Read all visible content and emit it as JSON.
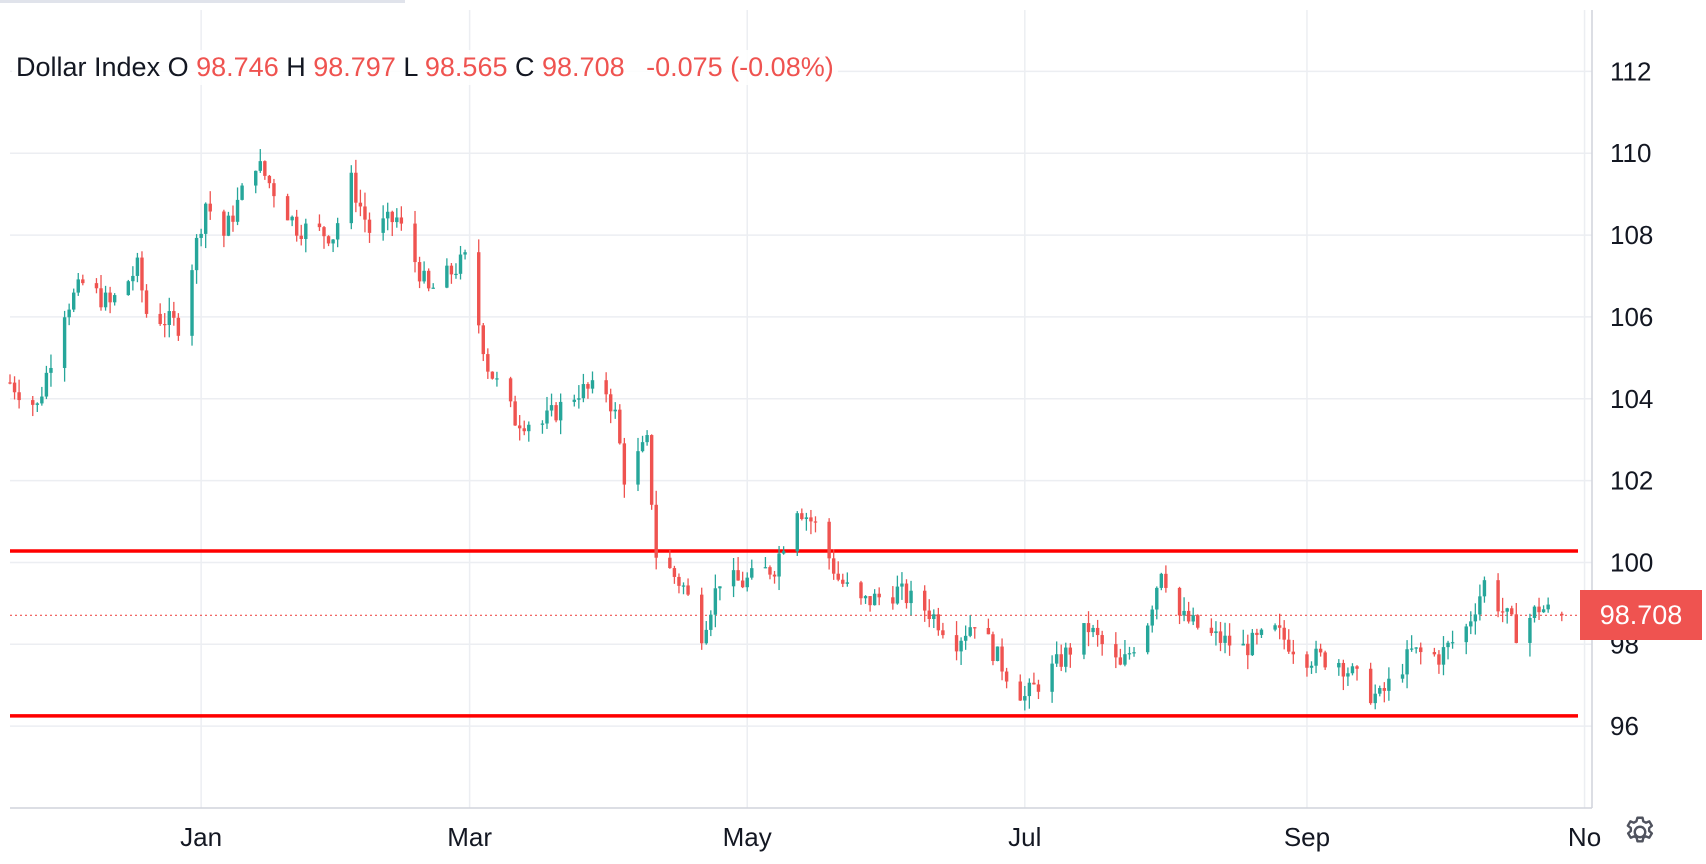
{
  "legend": {
    "name": "Dollar Index",
    "o_label": "O",
    "open": "98.746",
    "h_label": "H",
    "high": "98.797",
    "l_label": "L",
    "low": "98.565",
    "c_label": "C",
    "close": "98.708",
    "change": "-0.075 (-0.08%)"
  },
  "last_price_tag": "98.708",
  "colors": {
    "up": "#26a69a",
    "down": "#ef5350",
    "hline": "#ff0000",
    "grid": "#eceef2",
    "axis": "#d1d4dc"
  },
  "icons": {
    "settings": "gear-icon"
  },
  "chart_data": {
    "type": "candlestick",
    "title": "Dollar Index",
    "y_range": [
      94,
      113.5
    ],
    "y_ticks": [
      96,
      98,
      100,
      102,
      104,
      106,
      108,
      110,
      112
    ],
    "x_range": [
      "2024-11-20",
      "2025-10-31"
    ],
    "x_ticks": [
      {
        "date": "2025-01-01",
        "label": "Jan"
      },
      {
        "date": "2025-03-01",
        "label": "Mar"
      },
      {
        "date": "2025-05-01",
        "label": "May"
      },
      {
        "date": "2025-07-01",
        "label": "Jul"
      },
      {
        "date": "2025-09-01",
        "label": "Sep"
      },
      {
        "date": "2025-11-01",
        "label": "No"
      }
    ],
    "horizontal_lines": [
      100.28,
      96.25
    ],
    "last_price": 98.708,
    "grid": true,
    "price_path": [
      [
        "2024-11-20",
        104.4
      ],
      [
        "2024-11-26",
        103.8
      ],
      [
        "2024-12-02",
        106.2
      ],
      [
        "2024-12-06",
        106.8
      ],
      [
        "2024-12-12",
        106.3
      ],
      [
        "2024-12-18",
        107.2
      ],
      [
        "2024-12-20",
        106.1
      ],
      [
        "2024-12-27",
        105.8
      ],
      [
        "2025-01-02",
        108.8
      ],
      [
        "2025-01-06",
        108.0
      ],
      [
        "2025-01-13",
        109.8
      ],
      [
        "2025-01-17",
        109.1
      ],
      [
        "2025-01-22",
        108.2
      ],
      [
        "2025-01-30",
        108.0
      ],
      [
        "2025-02-03",
        109.3
      ],
      [
        "2025-02-07",
        108.1
      ],
      [
        "2025-02-13",
        108.4
      ],
      [
        "2025-02-20",
        106.6
      ],
      [
        "2025-02-28",
        107.4
      ],
      [
        "2025-03-05",
        104.8
      ],
      [
        "2025-03-11",
        103.5
      ],
      [
        "2025-03-17",
        103.4
      ],
      [
        "2025-03-25",
        104.2
      ],
      [
        "2025-03-31",
        104.2
      ],
      [
        "2025-04-02",
        103.6
      ],
      [
        "2025-04-04",
        102.1
      ],
      [
        "2025-04-09",
        102.9
      ],
      [
        "2025-04-11",
        100.2
      ],
      [
        "2025-04-17",
        99.4
      ],
      [
        "2025-04-21",
        98.3
      ],
      [
        "2025-04-25",
        99.6
      ],
      [
        "2025-04-30",
        99.5
      ],
      [
        "2025-05-07",
        99.9
      ],
      [
        "2025-05-12",
        101.4
      ],
      [
        "2025-05-16",
        100.9
      ],
      [
        "2025-05-21",
        99.6
      ],
      [
        "2025-05-26",
        99.0
      ],
      [
        "2025-06-03",
        99.3
      ],
      [
        "2025-06-10",
        98.8
      ],
      [
        "2025-06-16",
        98.1
      ],
      [
        "2025-06-20",
        98.6
      ],
      [
        "2025-06-27",
        97.3
      ],
      [
        "2025-07-01",
        96.7
      ],
      [
        "2025-07-08",
        97.5
      ],
      [
        "2025-07-15",
        98.4
      ],
      [
        "2025-07-22",
        97.4
      ],
      [
        "2025-07-28",
        98.6
      ],
      [
        "2025-07-31",
        99.9
      ],
      [
        "2025-08-04",
        98.7
      ],
      [
        "2025-08-11",
        98.2
      ],
      [
        "2025-08-18",
        97.9
      ],
      [
        "2025-08-25",
        98.3
      ],
      [
        "2025-09-01",
        97.7
      ],
      [
        "2025-09-08",
        97.6
      ],
      [
        "2025-09-15",
        96.8
      ],
      [
        "2025-09-17",
        96.7
      ],
      [
        "2025-09-24",
        97.8
      ],
      [
        "2025-09-30",
        97.7
      ],
      [
        "2025-10-06",
        98.4
      ],
      [
        "2025-10-10",
        99.5
      ],
      [
        "2025-10-17",
        98.3
      ],
      [
        "2025-10-22",
        98.9
      ],
      [
        "2025-10-27",
        98.71
      ]
    ]
  }
}
